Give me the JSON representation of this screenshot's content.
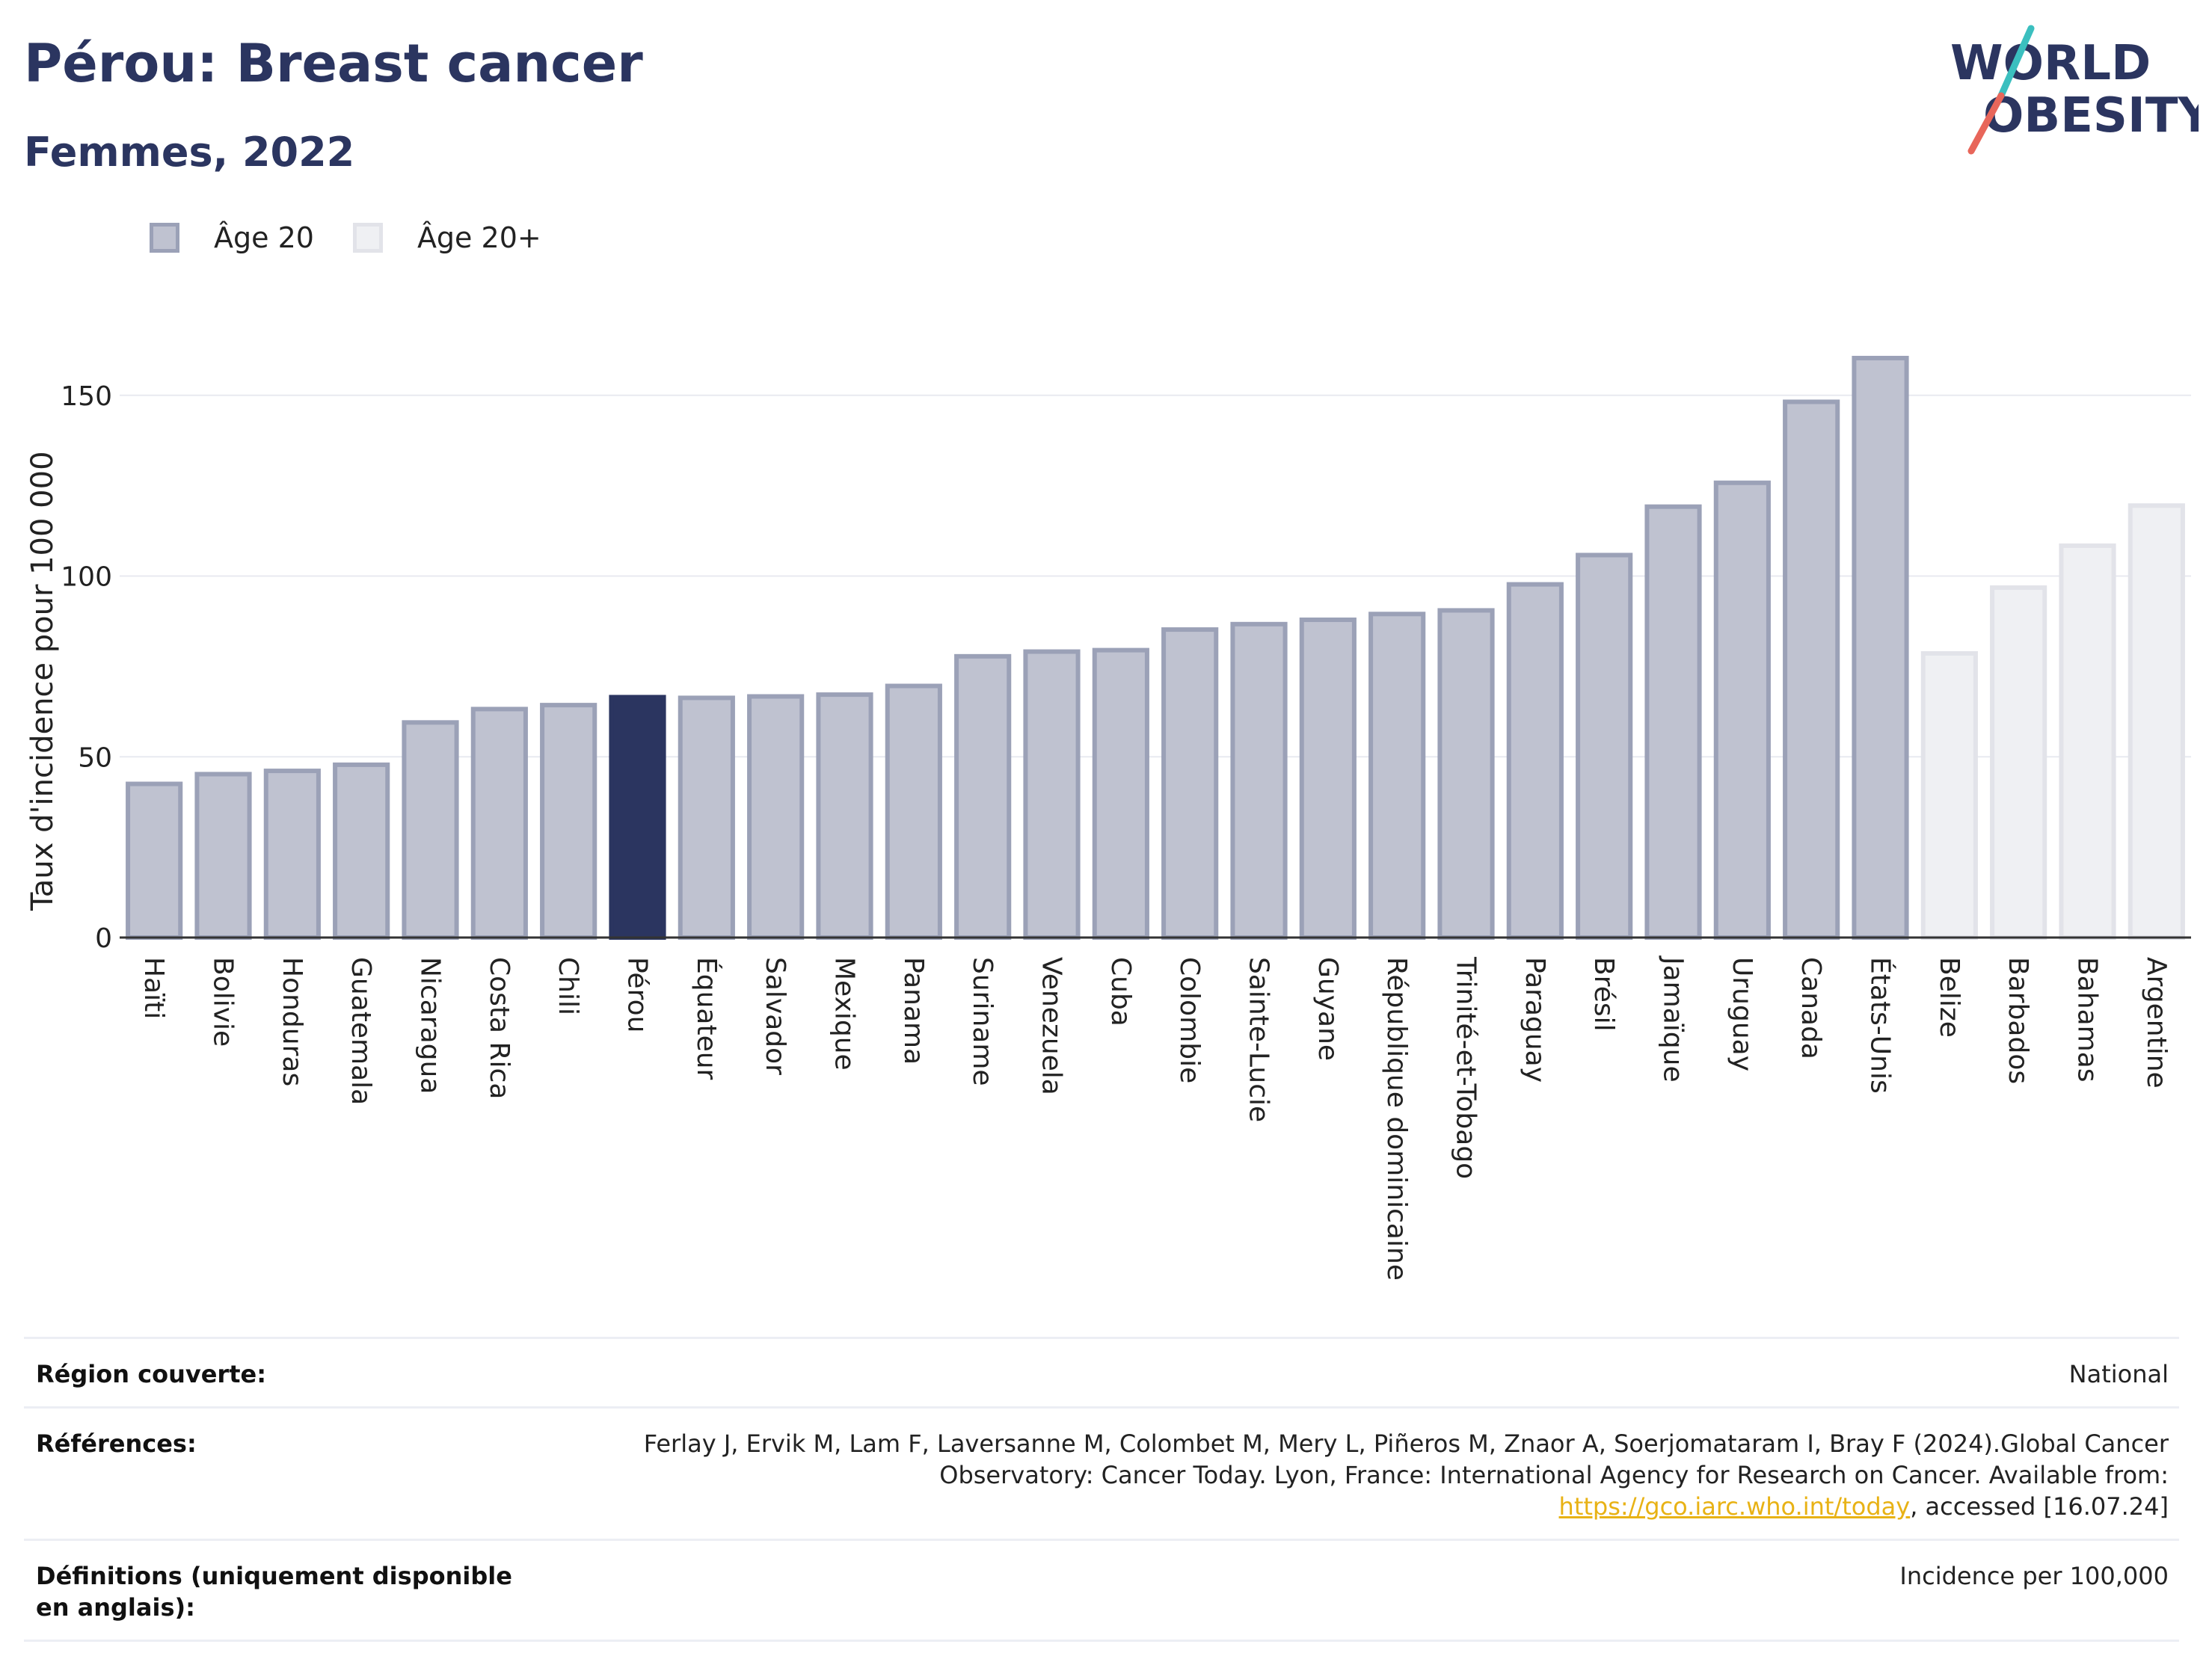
{
  "header": {
    "title": "Pérou: Breast cancer",
    "subtitle": "Femmes, 2022"
  },
  "logo": {
    "line1": "WORLD",
    "line2": "OBESITY",
    "colors": {
      "text": "#2b3560",
      "slash_teal": "#3bbfbf",
      "slash_coral": "#e8665a"
    }
  },
  "legend": {
    "items": [
      {
        "label": "Âge 20",
        "color": "#bfc2d0"
      },
      {
        "label": "Âge 20+",
        "color": "#eff0f3"
      }
    ]
  },
  "chart_data": {
    "type": "bar",
    "title": "Pérou: Breast cancer",
    "subtitle": "Femmes, 2022",
    "ylabel": "Taux d'incidence pour 100 000",
    "xlabel": "",
    "ylim": [
      0,
      170
    ],
    "yticks": [
      0,
      50,
      100,
      150
    ],
    "grid": true,
    "legend_position": "top-left",
    "highlight": "Pérou",
    "colors": {
      "age20": "#bfc2d0",
      "age20_border": "#9ba1b7",
      "age20plus": "#eff0f3",
      "age20plus_border": "#e2e3e9",
      "highlight": "#2b3560"
    },
    "categories": [
      "Haïti",
      "Bolivie",
      "Honduras",
      "Guatemala",
      "Nicaragua",
      "Costa Rica",
      "Chili",
      "Pérou",
      "Équateur",
      "Salvador",
      "Mexique",
      "Panama",
      "Suriname",
      "Venezuela",
      "Cuba",
      "Colombie",
      "Sainte-Lucie",
      "Guyane",
      "République dominicaine",
      "Trinité-et-Tobago",
      "Paraguay",
      "Brésil",
      "Jamaïque",
      "Uruguay",
      "Canada",
      "États-Unis",
      "Belize",
      "Barbados",
      "Bahamas",
      "Argentine"
    ],
    "values": [
      42.5,
      45.2,
      46.1,
      47.8,
      59.5,
      63.2,
      64.3,
      66.5,
      66.3,
      66.7,
      67.2,
      69.6,
      77.8,
      79.1,
      79.5,
      85.2,
      86.7,
      87.9,
      89.5,
      90.5,
      97.7,
      105.8,
      119.2,
      125.8,
      148.2,
      160.3,
      78.6,
      96.8,
      108.4,
      119.5
    ],
    "groups": [
      "Âge 20",
      "Âge 20",
      "Âge 20",
      "Âge 20",
      "Âge 20",
      "Âge 20",
      "Âge 20",
      "Âge 20",
      "Âge 20",
      "Âge 20",
      "Âge 20",
      "Âge 20",
      "Âge 20",
      "Âge 20",
      "Âge 20",
      "Âge 20",
      "Âge 20",
      "Âge 20",
      "Âge 20",
      "Âge 20",
      "Âge 20",
      "Âge 20",
      "Âge 20",
      "Âge 20",
      "Âge 20",
      "Âge 20",
      "Âge 20+",
      "Âge 20+",
      "Âge 20+",
      "Âge 20+"
    ]
  },
  "meta": {
    "region_label": "Région couverte:",
    "region_value": "National",
    "references_label": "Références:",
    "references_text": "Ferlay J, Ervik M, Lam F, Laversanne M, Colombet M, Mery L, Piñeros M, Znaor A, Soerjomataram I, Bray F (2024).Global Cancer Observatory: Cancer Today. Lyon, France: International Agency for Research on Cancer. Available from:",
    "references_link": "https://gco.iarc.who.int/today",
    "references_suffix": ", accessed [16.07.24]",
    "definitions_label": "Définitions (uniquement disponible en anglais):",
    "definitions_value": "Incidence per 100,000"
  }
}
